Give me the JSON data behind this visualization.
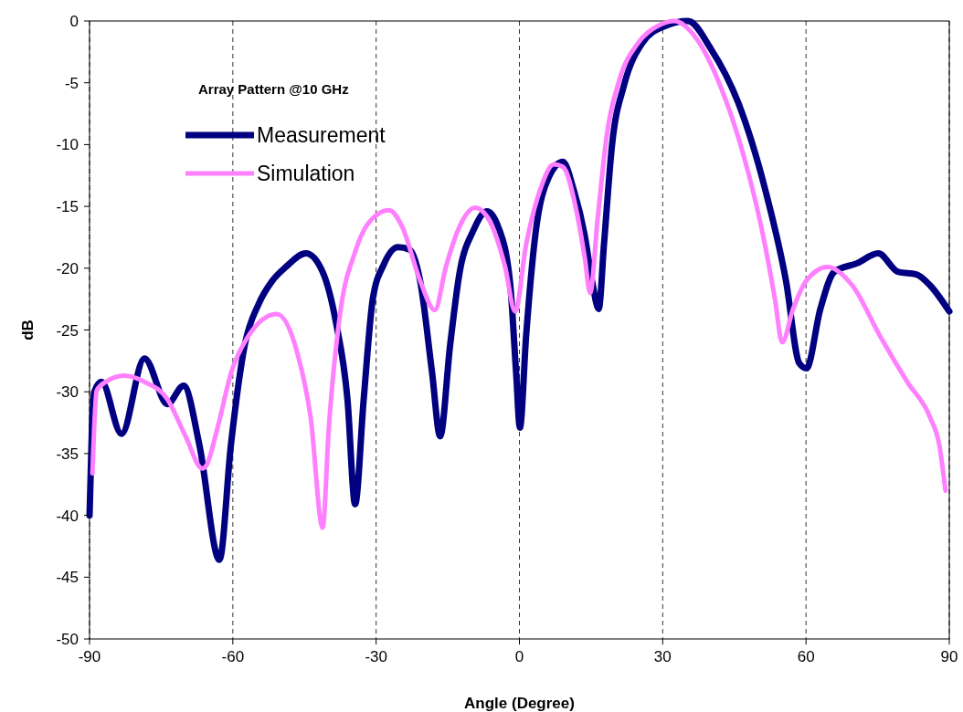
{
  "chart_data": {
    "type": "line",
    "xlabel": "Angle (Degree)",
    "ylabel": "dB",
    "legend_title": "Array Pattern @10 GHz",
    "legend": "top left",
    "grid": "x",
    "xlim": [
      -90,
      90
    ],
    "xticks": [
      -90,
      -60,
      -30,
      0,
      30,
      60,
      90
    ],
    "ylim": [
      -50,
      0
    ],
    "yticks": [
      -50,
      -45,
      -40,
      -35,
      -30,
      -25,
      -20,
      -15,
      -10,
      -5,
      0
    ],
    "series": [
      {
        "name": "Measurement",
        "color": "#000080",
        "x": [
          -90,
          -89.5,
          -89,
          -87.5,
          -83.3,
          -78.5,
          -73.7,
          -70.3,
          -67,
          -62.8,
          -60.4,
          -57.5,
          -54.6,
          -51.7,
          -48.9,
          -44.7,
          -41.2,
          -38.4,
          -36,
          -34.4,
          -32.6,
          -30.7,
          -28.4,
          -25.4,
          -23,
          -20.8,
          -18.3,
          -16.6,
          -14.5,
          -12.5,
          -9.7,
          -6.8,
          -4.5,
          -2,
          -0.7,
          0.1,
          1.4,
          3.3,
          6.2,
          9.1,
          11.4,
          13.7,
          15.2,
          16.6,
          17.7,
          19.4,
          21.9,
          25.7,
          30.5,
          35.3,
          40,
          45.8,
          51.5,
          55.8,
          58.6,
          60.1,
          63,
          65.9,
          70.7,
          75.1,
          79.3,
          83.1,
          86,
          90
        ],
        "values": [
          -40,
          -33,
          -30,
          -29.2,
          -33.4,
          -27.3,
          -31,
          -29.5,
          -34.3,
          -43.6,
          -34.3,
          -26.2,
          -22.9,
          -21,
          -19.9,
          -18.8,
          -20.3,
          -24.4,
          -30.6,
          -39.1,
          -30.6,
          -22.5,
          -19.7,
          -18.3,
          -18.5,
          -21,
          -28.4,
          -33.6,
          -26.2,
          -20.3,
          -17,
          -15.4,
          -16.6,
          -21,
          -28.4,
          -32.9,
          -25.5,
          -17.4,
          -12.6,
          -11.4,
          -13.7,
          -17.4,
          -21,
          -23.3,
          -18.1,
          -10,
          -5.2,
          -1.8,
          -0.4,
          0,
          -2.2,
          -6.6,
          -13.7,
          -21,
          -27.7,
          -28.1,
          -23.3,
          -20.3,
          -19.6,
          -18.8,
          -20.3,
          -20.5,
          -21.4,
          -23.5
        ]
      },
      {
        "name": "Simulation",
        "color": "#ff80ff",
        "x": [
          -89.4,
          -88.5,
          -86.6,
          -82.7,
          -78.5,
          -73.7,
          -69.9,
          -66.4,
          -65.6,
          -63.2,
          -60.3,
          -57.1,
          -50.8,
          -46.4,
          -43.7,
          -41.2,
          -39.9,
          -37.4,
          -34.5,
          -31.7,
          -27.3,
          -24.6,
          -20.8,
          -17.7,
          -15.4,
          -12.5,
          -9.3,
          -6.2,
          -3,
          -0.9,
          1.4,
          4.3,
          7.2,
          9.1,
          11.8,
          13.7,
          14.8,
          16.4,
          18.3,
          20.9,
          24.8,
          29,
          32.4,
          37.2,
          42,
          46.8,
          50.6,
          53.5,
          55,
          57.3,
          60.1,
          64.5,
          69.7,
          75.5,
          81.2,
          86,
          87.9,
          89.2
        ],
        "values": [
          -36.6,
          -29.9,
          -29.2,
          -28.7,
          -29.2,
          -30.6,
          -33.6,
          -36.2,
          -36,
          -32.9,
          -28.4,
          -25.7,
          -23.7,
          -27,
          -32.1,
          -41,
          -32.9,
          -23.3,
          -18.8,
          -16.4,
          -15.3,
          -16.6,
          -21,
          -23.4,
          -19.9,
          -16.6,
          -15.1,
          -16.2,
          -19.9,
          -23.5,
          -18.1,
          -13.7,
          -11.6,
          -11.8,
          -15.1,
          -19.2,
          -22,
          -15.9,
          -9.2,
          -4.8,
          -1.8,
          -0.4,
          0,
          -1.5,
          -5.2,
          -10.7,
          -16.6,
          -22.5,
          -26,
          -23.3,
          -21,
          -19.9,
          -21.4,
          -25.5,
          -29.2,
          -32.1,
          -34.3,
          -38
        ]
      }
    ]
  }
}
